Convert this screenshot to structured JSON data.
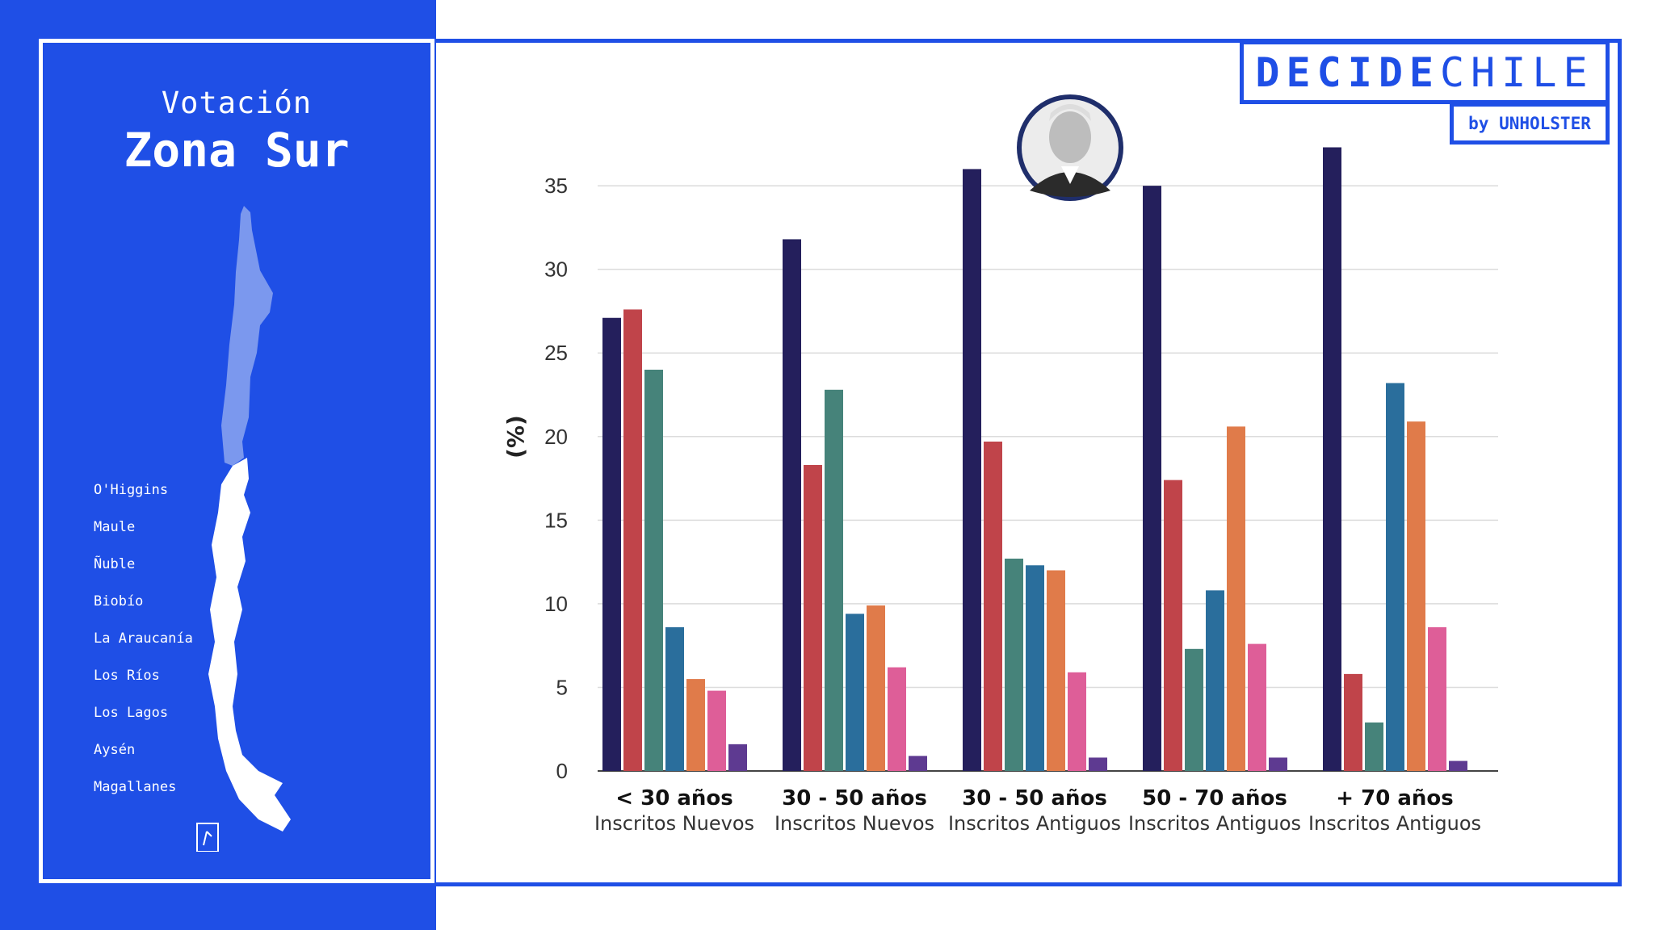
{
  "header": {
    "title_top": "Votación",
    "title_main": "Zona Sur"
  },
  "brand": {
    "bold_part": "DECIDE",
    "light_part": "CHILE",
    "sub": "by UNHOLSTER"
  },
  "regions": [
    "O'Higgins",
    "Maule",
    "Ñuble",
    "Biobío",
    "La Araucanía",
    "Los Ríos",
    "Los Lagos",
    "Aysén",
    "Magallanes"
  ],
  "colors": {
    "brand_blue": "#1f4fe6",
    "series": [
      "#241f5c",
      "#c0444a",
      "#46837a",
      "#2a6e9c",
      "#e07b4a",
      "#de5e98",
      "#5e3a91"
    ]
  },
  "icons": {
    "candidate_photo": "candidate-portrait-icon",
    "map": "chile-map-icon"
  },
  "chart_data": {
    "type": "bar",
    "categories": [
      "< 30 años",
      "30 - 50 años",
      "30 - 50 años",
      "50 - 70 años",
      "+ 70 años"
    ],
    "subcategories": [
      "Inscritos Nuevos",
      "Inscritos Nuevos",
      "Inscritos Antiguos",
      "Inscritos Antiguos",
      "Inscritos Antiguos"
    ],
    "series": [
      {
        "values": [
          27.1,
          31.8,
          36.0,
          35.0,
          37.3
        ]
      },
      {
        "values": [
          27.6,
          18.3,
          19.7,
          17.4,
          5.8
        ]
      },
      {
        "values": [
          24.0,
          22.8,
          12.7,
          7.3,
          2.9
        ]
      },
      {
        "values": [
          8.6,
          9.4,
          12.3,
          10.8,
          23.2
        ]
      },
      {
        "values": [
          5.5,
          9.9,
          12.0,
          20.6,
          20.9
        ]
      },
      {
        "values": [
          4.8,
          6.2,
          5.9,
          7.6,
          8.6
        ]
      },
      {
        "values": [
          1.6,
          0.9,
          0.8,
          0.8,
          0.6
        ]
      }
    ],
    "ylabel": "(%)",
    "yticks": [
      0,
      5,
      10,
      15,
      20,
      25,
      30,
      35
    ],
    "ylim": [
      0,
      38
    ],
    "grid": true,
    "legend": "none"
  }
}
